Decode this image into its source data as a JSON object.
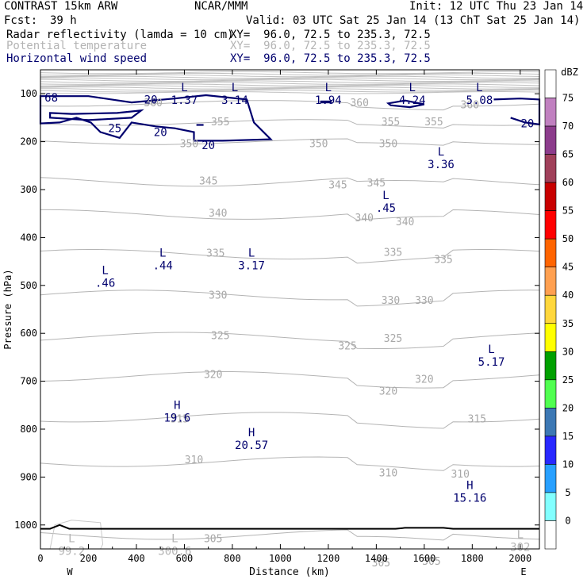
{
  "header": {
    "title_left": "CONTRAST 15km ARW",
    "title_center": "NCAR/MMM",
    "init": "Init: 12 UTC Thu 23 Jan 14",
    "fcst_label": "Fcst:",
    "fcst_value": "39 h",
    "valid": "Valid: 03 UTC Sat 25 Jan 14 (13 ChT Sat 25 Jan 14)"
  },
  "fields": [
    {
      "name": "Radar reflectivity (lamda = 10 cm)",
      "xy": "XY=  96.0, 72.5 to 235.3, 72.5",
      "color": "#000000"
    },
    {
      "name": "Potential temperature",
      "xy": "XY=  96.0, 72.5 to 235.3, 72.5",
      "color": "#b4b4b4"
    },
    {
      "name": "Horizontal wind speed",
      "xy": "XY=  96.0, 72.5 to 235.3, 72.5",
      "color": "#00006e"
    }
  ],
  "chart_data": {
    "type": "cross-section contour",
    "xlabel": "Distance (km)",
    "ylabel": "Pressure (hPa)",
    "xlim": [
      0,
      2080
    ],
    "ylim": [
      1050,
      50
    ],
    "x_ticks": [
      "0",
      "200",
      "400",
      "600",
      "800",
      "1000",
      "1200",
      "1400",
      "1600",
      "1800",
      "2000"
    ],
    "x_tick_values": [
      0,
      200,
      400,
      600,
      800,
      1000,
      1200,
      1400,
      1600,
      1800,
      2000
    ],
    "y_ticks": [
      "100",
      "200",
      "300",
      "400",
      "500",
      "600",
      "700",
      "800",
      "900",
      "1000"
    ],
    "y_tick_values": [
      100,
      200,
      300,
      400,
      500,
      600,
      700,
      800,
      900,
      1000
    ],
    "west_label": "W",
    "east_label": "E",
    "colorbar": {
      "unit": "dBZ",
      "labels": [
        "75",
        "70",
        "65",
        "60",
        "55",
        "50",
        "45",
        "40",
        "35",
        "30",
        "25",
        "20",
        "15",
        "10",
        "5",
        "0"
      ],
      "colors": [
        "#ffffff",
        "#c080c0",
        "#8c3c8c",
        "#a0405a",
        "#c80000",
        "#ff0000",
        "#ff6400",
        "#ffa050",
        "#ffd73c",
        "#ffff00",
        "#00a000",
        "#50ff50",
        "#3c78b4",
        "#2828ff",
        "#28a0ff",
        "#82ffff",
        "#ffffff"
      ]
    },
    "theta_labels": [
      {
        "text": "360",
        "x": 470,
        "p": 118
      },
      {
        "text": "360",
        "x": 1330,
        "p": 118
      },
      {
        "text": "360",
        "x": 1790,
        "p": 122
      },
      {
        "text": "355",
        "x": 750,
        "p": 158
      },
      {
        "text": "355",
        "x": 1460,
        "p": 158
      },
      {
        "text": "355",
        "x": 1640,
        "p": 158
      },
      {
        "text": "350",
        "x": 620,
        "p": 203
      },
      {
        "text": "350",
        "x": 1160,
        "p": 203
      },
      {
        "text": "350",
        "x": 1450,
        "p": 203
      },
      {
        "text": "345",
        "x": 700,
        "p": 281
      },
      {
        "text": "345",
        "x": 1240,
        "p": 289
      },
      {
        "text": "345",
        "x": 1400,
        "p": 285
      },
      {
        "text": "340",
        "x": 740,
        "p": 348
      },
      {
        "text": "340",
        "x": 1350,
        "p": 358
      },
      {
        "text": "340",
        "x": 1520,
        "p": 366
      },
      {
        "text": "335",
        "x": 730,
        "p": 432
      },
      {
        "text": "335",
        "x": 1470,
        "p": 430
      },
      {
        "text": "335",
        "x": 1680,
        "p": 445
      },
      {
        "text": "330",
        "x": 740,
        "p": 519
      },
      {
        "text": "330",
        "x": 1460,
        "p": 530
      },
      {
        "text": "330",
        "x": 1600,
        "p": 530
      },
      {
        "text": "325",
        "x": 750,
        "p": 604
      },
      {
        "text": "325",
        "x": 1280,
        "p": 625
      },
      {
        "text": "325",
        "x": 1470,
        "p": 610
      },
      {
        "text": "320",
        "x": 720,
        "p": 685
      },
      {
        "text": "320",
        "x": 1450,
        "p": 720
      },
      {
        "text": "320",
        "x": 1600,
        "p": 695
      },
      {
        "text": "315",
        "x": 580,
        "p": 778
      },
      {
        "text": "315",
        "x": 1820,
        "p": 778
      },
      {
        "text": "310",
        "x": 640,
        "p": 863
      },
      {
        "text": "310",
        "x": 1450,
        "p": 890
      },
      {
        "text": "310",
        "x": 1750,
        "p": 893
      },
      {
        "text": "305",
        "x": 720,
        "p": 1028
      },
      {
        "text": "305",
        "x": 1420,
        "p": 1078
      },
      {
        "text": "305",
        "x": 1630,
        "p": 1075
      }
    ],
    "theta_values": [
      300,
      305,
      310,
      315,
      320,
      325,
      330,
      335,
      340,
      345,
      350,
      355,
      360
    ],
    "wind_labels": [
      {
        "text": "20",
        "x": 460,
        "p": 112
      },
      {
        "text": "25",
        "x": 310,
        "p": 172
      },
      {
        "text": "20",
        "x": 500,
        "p": 180
      },
      {
        "text": "20",
        "x": 700,
        "p": 207
      },
      {
        "text": "20",
        "x": 2030,
        "p": 162
      }
    ],
    "wind_values": [
      20,
      25
    ],
    "lows": [
      {
        "letter": "L",
        "value": "1.37",
        "x": 600,
        "p": 95
      },
      {
        "letter": "L",
        "value": "3.14",
        "x": 810,
        "p": 95
      },
      {
        "letter": "L",
        "value": "1.94",
        "x": 1200,
        "p": 95
      },
      {
        "letter": "L",
        "value": "4.24",
        "x": 1550,
        "p": 95
      },
      {
        "letter": "L",
        "value": "5.08",
        "x": 1830,
        "p": 95
      },
      {
        "letter": "L",
        "value": "3.36",
        "x": 1670,
        "p": 229
      },
      {
        "letter": "L",
        "value": ".45",
        "x": 1440,
        "p": 320
      },
      {
        "letter": "L",
        "value": ".44",
        "x": 510,
        "p": 440
      },
      {
        "letter": "L",
        "value": "3.17",
        "x": 880,
        "p": 440
      },
      {
        "letter": "L",
        "value": ".46",
        "x": 270,
        "p": 476
      },
      {
        "letter": "L",
        "value": "5.17",
        "x": 1880,
        "p": 641
      },
      {
        "letter": "L",
        "value": "99.2",
        "x": 130,
        "p": 1036
      },
      {
        "letter": "L",
        "value": "300.6",
        "x": 560,
        "p": 1036
      },
      {
        "letter": "L",
        "value": "302",
        "x": 2000,
        "p": 1028
      }
    ],
    "highs": [
      {
        "letter": "H",
        "value": "19.6",
        "x": 570,
        "p": 758
      },
      {
        "letter": "H",
        "value": "20.57",
        "x": 880,
        "p": 815
      },
      {
        "letter": "H",
        "value": "15.16",
        "x": 1790,
        "p": 925
      }
    ],
    "edge_label": {
      "text": "68",
      "x": 45,
      "p": 108
    }
  }
}
